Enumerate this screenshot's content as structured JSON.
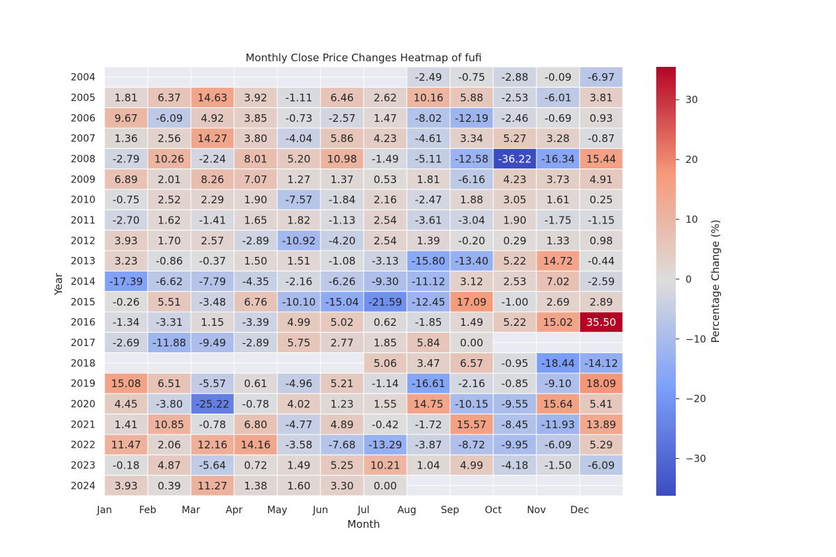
{
  "chart_data": {
    "type": "heatmap",
    "title": "Monthly Close Price Changes Heatmap of fufi",
    "xlabel": "Month",
    "ylabel": "Year",
    "colorbar_label": "Percentage Change (%)",
    "colorbar_range": [
      -36.22,
      35.5
    ],
    "colorbar_ticks": [
      -30,
      -20,
      -10,
      0,
      10,
      20,
      30
    ],
    "months": [
      "Jan",
      "Feb",
      "Mar",
      "Apr",
      "May",
      "Jun",
      "Jul",
      "Aug",
      "Sep",
      "Oct",
      "Nov",
      "Dec"
    ],
    "years": [
      "2004",
      "2005",
      "2006",
      "2007",
      "2008",
      "2009",
      "2010",
      "2011",
      "2012",
      "2013",
      "2014",
      "2015",
      "2016",
      "2017",
      "2018",
      "2019",
      "2020",
      "2021",
      "2022",
      "2023",
      "2024"
    ],
    "values": [
      [
        null,
        null,
        null,
        null,
        null,
        null,
        null,
        -2.49,
        -0.75,
        -2.88,
        -0.09,
        -6.97
      ],
      [
        1.81,
        6.37,
        14.63,
        3.92,
        -1.11,
        6.46,
        2.62,
        10.16,
        5.88,
        -2.53,
        -6.01,
        3.81
      ],
      [
        9.67,
        -6.09,
        4.92,
        3.85,
        -0.73,
        -2.57,
        1.47,
        -8.02,
        -12.19,
        -2.46,
        -0.69,
        0.93
      ],
      [
        1.36,
        2.56,
        14.27,
        3.8,
        -4.04,
        5.86,
        4.23,
        -4.61,
        3.34,
        5.27,
        3.28,
        -0.87
      ],
      [
        -2.79,
        10.26,
        -2.24,
        8.01,
        5.2,
        10.98,
        -1.49,
        -5.11,
        -12.58,
        -36.22,
        -16.34,
        15.44
      ],
      [
        6.89,
        2.01,
        8.26,
        7.07,
        1.27,
        1.37,
        0.53,
        1.81,
        -6.16,
        4.23,
        3.73,
        4.91
      ],
      [
        -0.75,
        2.52,
        2.29,
        1.9,
        -7.57,
        -1.84,
        2.16,
        -2.47,
        1.88,
        3.05,
        1.61,
        0.25
      ],
      [
        -2.7,
        1.62,
        -1.41,
        1.65,
        1.82,
        -1.13,
        2.54,
        -3.61,
        -3.04,
        1.9,
        -1.75,
        -1.15
      ],
      [
        3.93,
        1.7,
        2.57,
        -2.89,
        -10.92,
        -4.2,
        2.54,
        1.39,
        -0.2,
        0.29,
        1.33,
        0.98
      ],
      [
        3.23,
        -0.86,
        -0.37,
        1.5,
        1.51,
        -1.08,
        -3.13,
        -15.8,
        -13.4,
        5.22,
        14.72,
        -0.44
      ],
      [
        -17.39,
        -6.62,
        -7.79,
        -4.35,
        -2.16,
        -6.26,
        -9.3,
        -11.12,
        3.12,
        2.53,
        7.02,
        -2.59
      ],
      [
        -0.26,
        5.51,
        -3.48,
        6.76,
        -10.1,
        -15.04,
        -21.59,
        -12.45,
        17.09,
        -1.0,
        2.69,
        2.89
      ],
      [
        -1.34,
        -3.31,
        1.15,
        -3.39,
        4.99,
        5.02,
        0.62,
        -1.85,
        1.49,
        5.22,
        15.02,
        35.5
      ],
      [
        -2.69,
        -11.88,
        -9.49,
        -2.89,
        5.75,
        2.77,
        1.85,
        5.84,
        0.0,
        null,
        null,
        null
      ],
      [
        null,
        null,
        null,
        null,
        null,
        null,
        5.06,
        3.47,
        6.57,
        -0.95,
        -18.44,
        -14.12
      ],
      [
        15.08,
        6.51,
        -5.57,
        0.61,
        -4.96,
        5.21,
        -1.14,
        -16.61,
        -2.16,
        -0.85,
        -9.1,
        18.09
      ],
      [
        4.45,
        -3.8,
        -25.22,
        -0.78,
        4.02,
        1.23,
        1.55,
        14.75,
        -10.15,
        -9.55,
        15.64,
        5.41
      ],
      [
        1.41,
        10.85,
        -0.78,
        6.8,
        -4.77,
        4.89,
        -0.42,
        -1.72,
        15.57,
        -8.45,
        -11.93,
        13.89
      ],
      [
        11.47,
        2.06,
        12.16,
        14.16,
        -3.58,
        -7.68,
        -13.29,
        -3.87,
        -8.72,
        -9.95,
        -6.09,
        5.29
      ],
      [
        -0.18,
        4.87,
        -5.64,
        0.72,
        1.49,
        5.25,
        10.21,
        1.04,
        4.99,
        -4.18,
        -1.5,
        -6.09
      ],
      [
        3.93,
        0.39,
        11.27,
        1.38,
        1.6,
        3.3,
        0.0,
        null,
        null,
        null,
        null,
        null
      ]
    ],
    "colormap": "coolwarm",
    "missing_color": "#eaeaf2"
  }
}
